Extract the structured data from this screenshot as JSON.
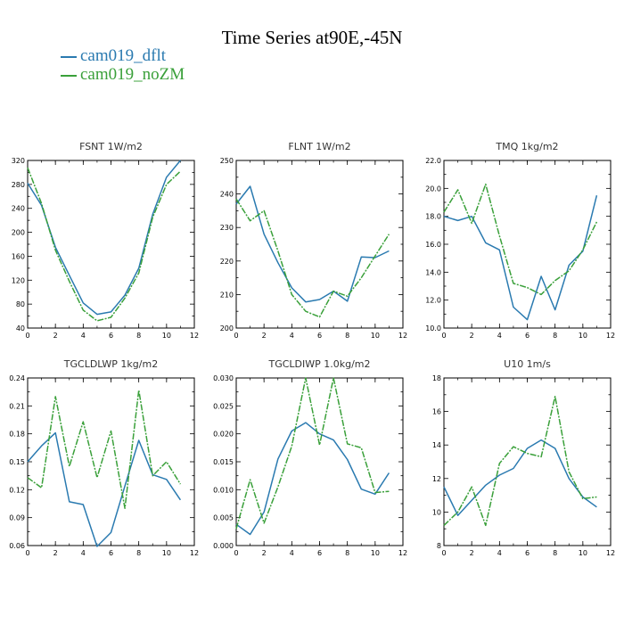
{
  "title": "Time Series at90E,-45N",
  "legend": [
    {
      "name": "cam019_dflt",
      "color": "#2a7ab0",
      "style": "solid"
    },
    {
      "name": "cam019_noZM",
      "color": "#3aa03a",
      "style": "dashed"
    }
  ],
  "chart_data": [
    {
      "type": "line",
      "title": "FSNT   1W/m2",
      "x": [
        0,
        1,
        2,
        3,
        4,
        5,
        6,
        7,
        8,
        9,
        10,
        11
      ],
      "xlim": [
        0,
        12
      ],
      "xticks": [
        0,
        2,
        4,
        6,
        8,
        10,
        12
      ],
      "ylim": [
        40,
        320
      ],
      "yticks": [
        "40",
        "80",
        "120",
        "160",
        "200",
        "240",
        "280",
        "320"
      ],
      "series": [
        {
          "name": "cam019_dflt",
          "values": [
            282,
            245,
            175,
            128,
            82,
            63,
            67,
            95,
            140,
            230,
            292,
            320
          ]
        },
        {
          "name": "cam019_noZM",
          "values": [
            308,
            248,
            170,
            118,
            70,
            52,
            58,
            90,
            132,
            225,
            280,
            302
          ]
        }
      ]
    },
    {
      "type": "line",
      "title": "FLNT   1W/m2",
      "x": [
        0,
        1,
        2,
        3,
        4,
        5,
        6,
        7,
        8,
        9,
        10,
        11
      ],
      "xlim": [
        0,
        12
      ],
      "xticks": [
        0,
        2,
        4,
        6,
        8,
        10,
        12
      ],
      "ylim": [
        200,
        250
      ],
      "yticks": [
        "200",
        "210",
        "220",
        "230",
        "240",
        "250"
      ],
      "series": [
        {
          "name": "cam019_dflt",
          "values": [
            237,
            242.3,
            228,
            219.5,
            212,
            207.8,
            208.5,
            211,
            208,
            221.2,
            221,
            223
          ]
        },
        {
          "name": "cam019_noZM",
          "values": [
            238.5,
            232,
            235,
            223,
            210,
            205,
            203.3,
            211,
            209.5,
            215,
            221.5,
            228
          ]
        }
      ]
    },
    {
      "type": "line",
      "title": "TMQ   1kg/m2",
      "x": [
        0,
        1,
        2,
        3,
        4,
        5,
        6,
        7,
        8,
        9,
        10,
        11
      ],
      "xlim": [
        0,
        12
      ],
      "xticks": [
        0,
        2,
        4,
        6,
        8,
        10,
        12
      ],
      "ylim": [
        10,
        22
      ],
      "yticks": [
        "10.0",
        "12.0",
        "14.0",
        "16.0",
        "18.0",
        "20.0",
        "22.0"
      ],
      "series": [
        {
          "name": "cam019_dflt",
          "values": [
            18.0,
            17.7,
            18.0,
            16.1,
            15.6,
            11.5,
            10.6,
            13.7,
            11.3,
            14.5,
            15.5,
            19.5
          ]
        },
        {
          "name": "cam019_noZM",
          "values": [
            18.3,
            19.9,
            17.5,
            20.3,
            16.6,
            13.2,
            12.9,
            12.4,
            13.4,
            14.1,
            15.6,
            17.6
          ]
        }
      ]
    },
    {
      "type": "line",
      "title": "TGCLDLWP   1kg/m2",
      "x": [
        0,
        1,
        2,
        3,
        4,
        5,
        6,
        7,
        8,
        9,
        10,
        11
      ],
      "xlim": [
        0,
        12
      ],
      "xticks": [
        0,
        2,
        4,
        6,
        8,
        10,
        12
      ],
      "ylim": [
        0.06,
        0.24
      ],
      "yticks": [
        "0.06",
        "0.09",
        "0.12",
        "0.15",
        "0.18",
        "0.21",
        "0.24"
      ],
      "series": [
        {
          "name": "cam019_dflt",
          "values": [
            0.15,
            0.167,
            0.181,
            0.107,
            0.104,
            0.059,
            0.074,
            0.124,
            0.173,
            0.136,
            0.131,
            0.109
          ]
        },
        {
          "name": "cam019_noZM",
          "values": [
            0.133,
            0.122,
            0.22,
            0.145,
            0.193,
            0.133,
            0.183,
            0.1,
            0.227,
            0.135,
            0.15,
            0.126
          ]
        }
      ]
    },
    {
      "type": "line",
      "title": "TGCLDIWP   1.0kg/m2",
      "x": [
        0,
        1,
        2,
        3,
        4,
        5,
        6,
        7,
        8,
        9,
        10,
        11
      ],
      "xlim": [
        0,
        12
      ],
      "xticks": [
        0,
        2,
        4,
        6,
        8,
        10,
        12
      ],
      "ylim": [
        0,
        0.03
      ],
      "yticks": [
        "0.000",
        "0.005",
        "0.010",
        "0.015",
        "0.020",
        "0.025",
        "0.030"
      ],
      "series": [
        {
          "name": "cam019_dflt",
          "values": [
            0.0038,
            0.002,
            0.006,
            0.0155,
            0.0205,
            0.022,
            0.02,
            0.0189,
            0.0154,
            0.0101,
            0.0092,
            0.013
          ]
        },
        {
          "name": "cam019_noZM",
          "values": [
            0.003,
            0.0118,
            0.004,
            0.0105,
            0.0178,
            0.03,
            0.018,
            0.03,
            0.0182,
            0.0175,
            0.0095,
            0.0097
          ]
        }
      ]
    },
    {
      "type": "line",
      "title": "U10   1m/s",
      "x": [
        0,
        1,
        2,
        3,
        4,
        5,
        6,
        7,
        8,
        9,
        10,
        11
      ],
      "xlim": [
        0,
        12
      ],
      "xticks": [
        0,
        2,
        4,
        6,
        8,
        10,
        12
      ],
      "ylim": [
        8,
        18
      ],
      "yticks": [
        "8",
        "10",
        "12",
        "14",
        "16",
        "18"
      ],
      "series": [
        {
          "name": "cam019_dflt",
          "values": [
            11.5,
            9.8,
            10.7,
            11.6,
            12.2,
            12.6,
            13.8,
            14.3,
            13.8,
            12.0,
            10.9,
            10.3
          ]
        },
        {
          "name": "cam019_noZM",
          "values": [
            9.2,
            10.0,
            11.5,
            9.2,
            12.9,
            13.9,
            13.5,
            13.3,
            16.9,
            12.4,
            10.8,
            10.9
          ]
        }
      ]
    }
  ]
}
